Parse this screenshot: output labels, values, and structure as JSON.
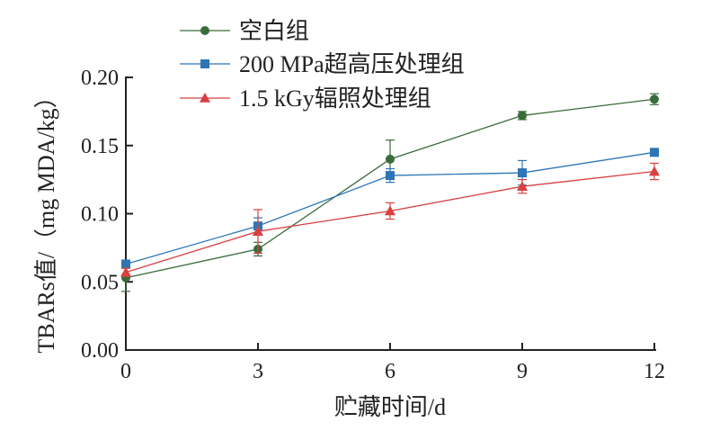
{
  "chart_data": {
    "type": "line",
    "xlabel": "贮藏时间/d",
    "ylabel": "TBARs值/（mg MDA/kg）",
    "x": [
      0,
      3,
      6,
      9,
      12
    ],
    "xticks": [
      "0",
      "3",
      "6",
      "9",
      "12"
    ],
    "yticks": [
      "0.00",
      "0.05",
      "0.10",
      "0.15",
      "0.20"
    ],
    "xlim": [
      0,
      12
    ],
    "ylim": [
      0,
      0.2
    ],
    "grid": false,
    "legend_position": "top-left",
    "series": [
      {
        "name": "空白组",
        "color": "#3a6b3a",
        "marker": "circle",
        "values": [
          0.053,
          0.074,
          0.14,
          0.172,
          0.184
        ],
        "errors": [
          0.01,
          0.005,
          0.014,
          0.003,
          0.004
        ]
      },
      {
        "name": "200 MPa超高压处理组",
        "color": "#2e75b6",
        "marker": "square",
        "values": [
          0.063,
          0.091,
          0.128,
          0.13,
          0.145
        ],
        "errors": [
          0.003,
          0.006,
          0.005,
          0.009,
          0.002
        ]
      },
      {
        "name": "1.5 kGy辐照处理组",
        "color": "#d94040",
        "marker": "triangle",
        "values": [
          0.057,
          0.087,
          0.102,
          0.12,
          0.131
        ],
        "errors": [
          0.003,
          0.016,
          0.006,
          0.005,
          0.006
        ]
      }
    ]
  }
}
